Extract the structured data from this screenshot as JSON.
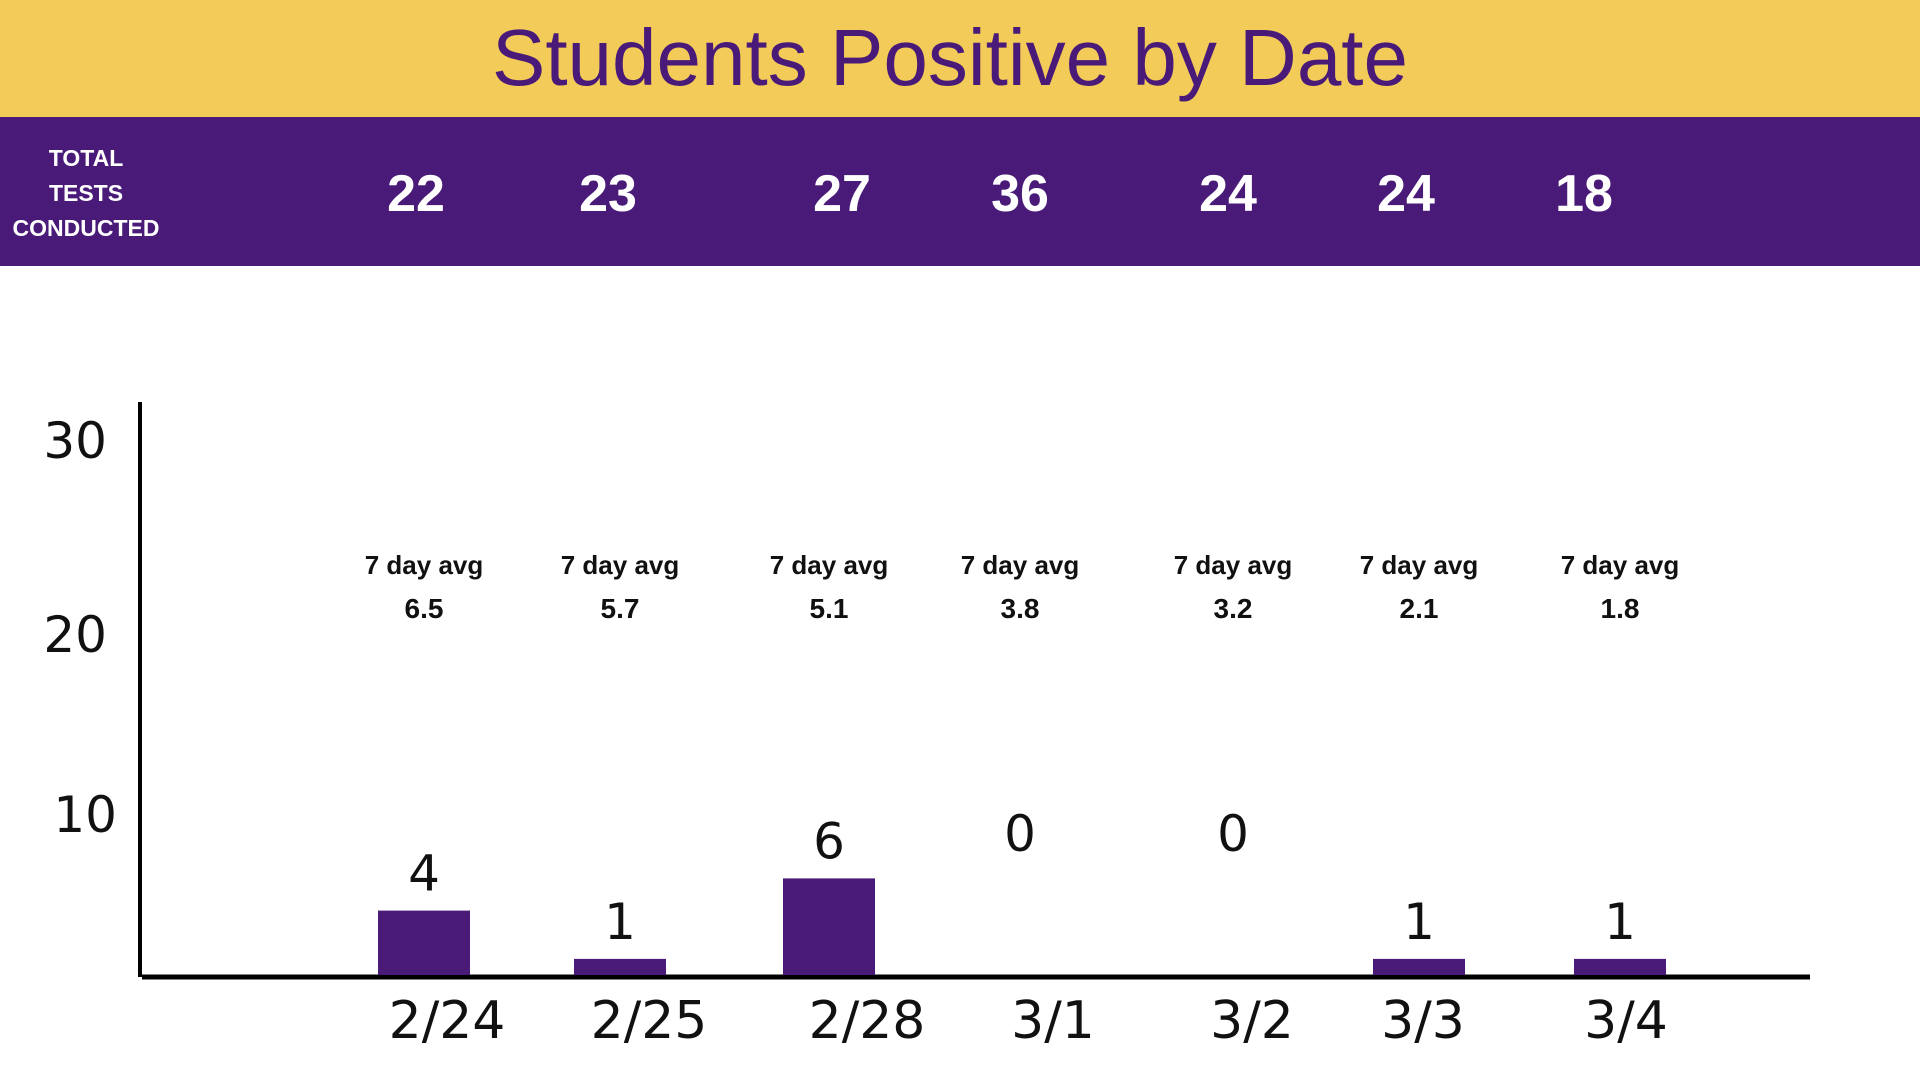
{
  "header": {
    "title": "Students Positive by Date",
    "tests_label": [
      "TOTAL",
      "TESTS",
      "CONDUCTED"
    ]
  },
  "colors": {
    "title_band": "#F3CB58",
    "purple": "#4A1A78",
    "text": "#111111"
  },
  "chart_data": {
    "type": "bar",
    "title": "Students Positive by Date",
    "xlabel": "",
    "ylabel": "",
    "categories": [
      "2/24",
      "2/25",
      "2/28",
      "3/1",
      "3/2",
      "3/3",
      "3/4"
    ],
    "values": [
      4,
      1,
      6,
      0,
      0,
      1,
      1
    ],
    "value_labels": [
      "4",
      "1",
      "6",
      "0",
      "0",
      "1",
      "1"
    ],
    "total_tests": [
      "22",
      "23",
      "27",
      "36",
      "24",
      "24",
      "18"
    ],
    "avg_label": "7 day avg",
    "seven_day_avg": [
      "6.5",
      "5.7",
      "5.1",
      "3.8",
      "3.2",
      "2.1",
      "1.8"
    ],
    "y_ticks": [
      "10",
      "20",
      "30"
    ],
    "ylim": [
      0,
      30
    ],
    "grid": false,
    "legend": "none"
  }
}
